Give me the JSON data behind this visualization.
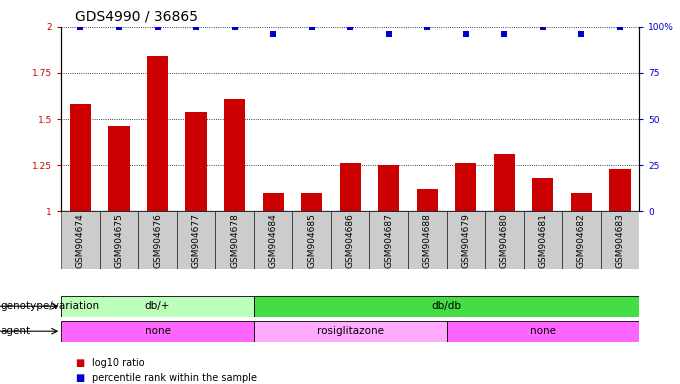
{
  "title": "GDS4990 / 36865",
  "samples": [
    "GSM904674",
    "GSM904675",
    "GSM904676",
    "GSM904677",
    "GSM904678",
    "GSM904684",
    "GSM904685",
    "GSM904686",
    "GSM904687",
    "GSM904688",
    "GSM904679",
    "GSM904680",
    "GSM904681",
    "GSM904682",
    "GSM904683"
  ],
  "log10_ratio": [
    1.58,
    1.46,
    1.84,
    1.54,
    1.61,
    1.1,
    1.1,
    1.26,
    1.25,
    1.12,
    1.26,
    1.31,
    1.18,
    1.1,
    1.23
  ],
  "percentile": [
    100,
    100,
    100,
    100,
    100,
    96,
    100,
    100,
    96,
    100,
    96,
    96,
    100,
    96,
    100
  ],
  "bar_color": "#cc0000",
  "dot_color": "#0000cc",
  "ylim_left": [
    1.0,
    2.0
  ],
  "yticks_left": [
    1.0,
    1.25,
    1.5,
    1.75,
    2.0
  ],
  "ytick_labels_left": [
    "1",
    "1.25",
    "1.5",
    "1.75",
    "2"
  ],
  "ylim_right": [
    0,
    100
  ],
  "yticks_right": [
    0,
    25,
    50,
    75,
    100
  ],
  "ytick_labels_right": [
    "0",
    "25",
    "50",
    "75",
    "100%"
  ],
  "genotype_groups": [
    {
      "label": "db/+",
      "start": 0,
      "end": 5,
      "color": "#bbffbb"
    },
    {
      "label": "db/db",
      "start": 5,
      "end": 15,
      "color": "#44dd44"
    }
  ],
  "agent_groups": [
    {
      "label": "none",
      "start": 0,
      "end": 5,
      "color": "#ff66ff"
    },
    {
      "label": "rosiglitazone",
      "start": 5,
      "end": 10,
      "color": "#ffaaff"
    },
    {
      "label": "none",
      "start": 10,
      "end": 15,
      "color": "#ff66ff"
    }
  ],
  "legend_items": [
    {
      "color": "#cc0000",
      "label": "log10 ratio"
    },
    {
      "color": "#0000cc",
      "label": "percentile rank within the sample"
    }
  ],
  "row_labels": [
    "genotype/variation",
    "agent"
  ],
  "background_color": "#ffffff",
  "tick_area_color": "#cccccc",
  "title_fontsize": 10,
  "tick_fontsize": 6.5,
  "label_fontsize": 7.5
}
